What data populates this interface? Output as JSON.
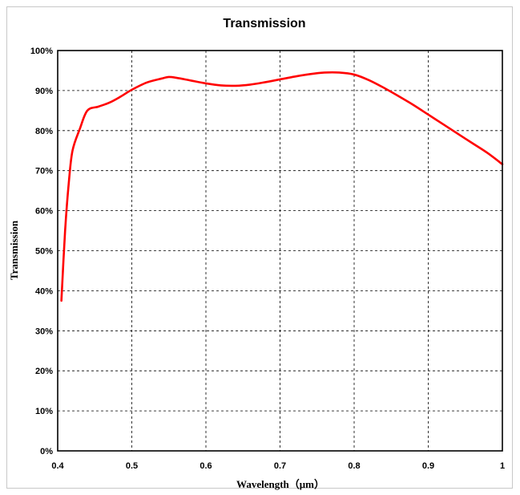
{
  "chart_data": {
    "type": "line",
    "title": "Transmission",
    "xlabel": "Wavelength（μm）",
    "ylabel": "Transmission",
    "xlim": [
      0.4,
      1.0
    ],
    "ylim": [
      0,
      100
    ],
    "x_ticks": [
      "0.4",
      "0.5",
      "0.6",
      "0.7",
      "0.8",
      "0.9",
      "1"
    ],
    "y_ticks": [
      "0%",
      "10%",
      "20%",
      "30%",
      "40%",
      "50%",
      "60%",
      "70%",
      "80%",
      "90%",
      "100%"
    ],
    "grid": true,
    "legend": "none",
    "series": [
      {
        "color": "#ff0000",
        "x": [
          0.405,
          0.41,
          0.415,
          0.42,
          0.43,
          0.44,
          0.455,
          0.47,
          0.485,
          0.5,
          0.52,
          0.54,
          0.55,
          0.56,
          0.58,
          0.6,
          0.62,
          0.64,
          0.66,
          0.68,
          0.7,
          0.72,
          0.74,
          0.76,
          0.78,
          0.8,
          0.82,
          0.84,
          0.86,
          0.88,
          0.9,
          0.92,
          0.94,
          0.96,
          0.98,
          1.0
        ],
        "y": [
          37.5,
          55,
          67,
          75,
          80.5,
          85,
          86,
          87,
          88.5,
          90.2,
          92,
          93,
          93.4,
          93.2,
          92.5,
          91.8,
          91.3,
          91.2,
          91.5,
          92.1,
          92.8,
          93.5,
          94.1,
          94.5,
          94.5,
          94,
          92.6,
          90.7,
          88.6,
          86.4,
          84,
          81.6,
          79.2,
          76.8,
          74.4,
          71.6
        ]
      }
    ]
  }
}
